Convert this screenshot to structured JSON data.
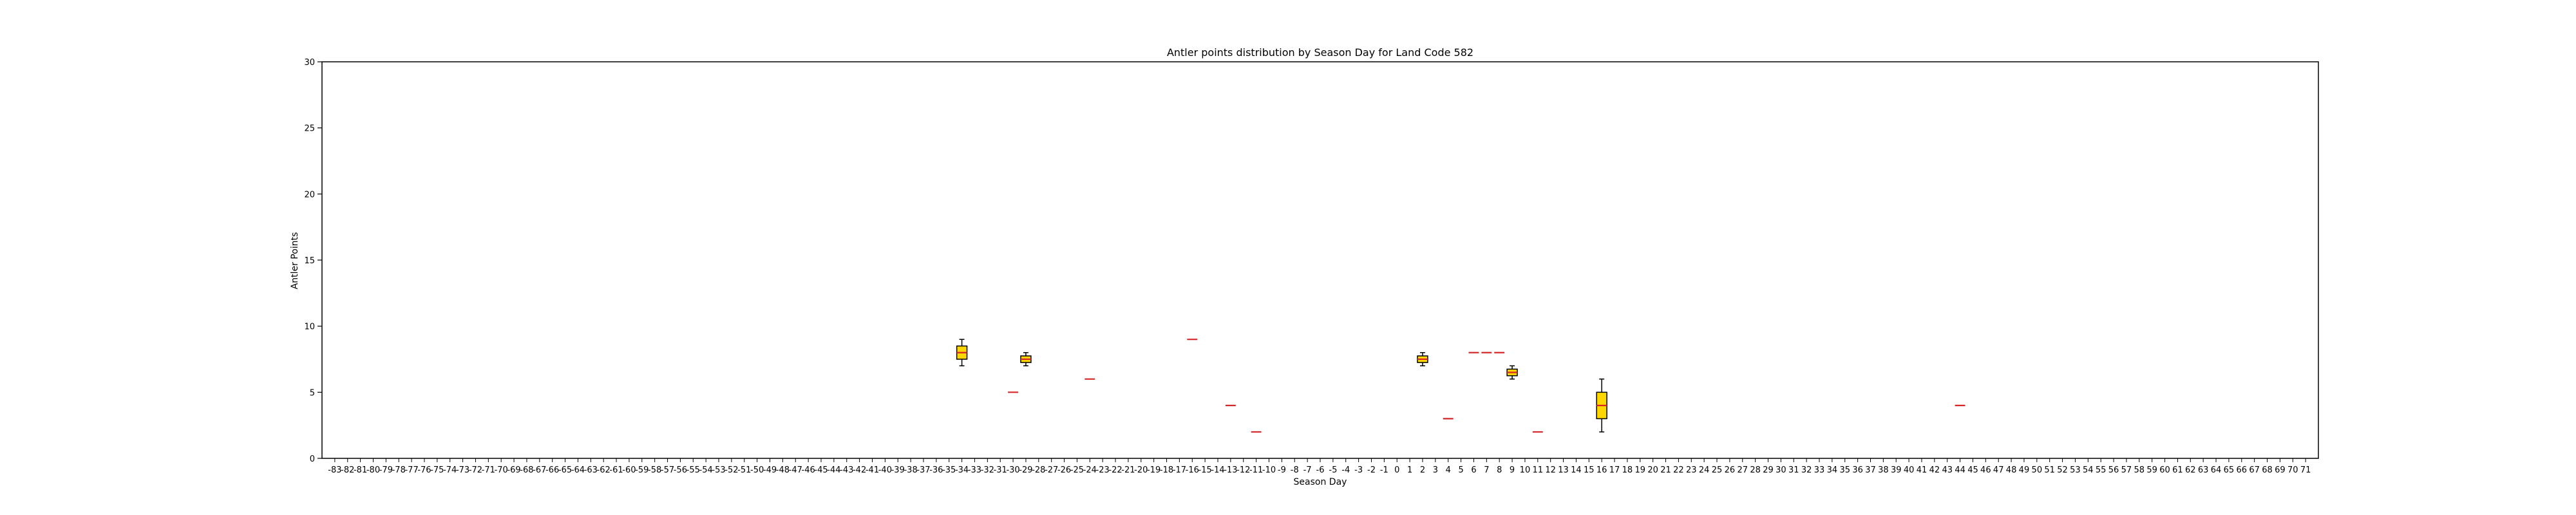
{
  "chart_data": {
    "type": "box",
    "title": "Antler points distribution by Season Day for Land Code 582",
    "xlabel": "Season Day",
    "ylabel": "Antler Points",
    "ylim": [
      0,
      30
    ],
    "yticks": [
      0,
      5,
      10,
      15,
      20,
      25,
      30
    ],
    "x_range": [
      -83,
      71
    ],
    "grid": false,
    "colors": {
      "box_fill": "#ffd700",
      "box_edge": "#000000",
      "median": "#d62728",
      "whisker": "#000000",
      "axis": "#000000"
    },
    "boxes": [
      {
        "day": -34,
        "min": 7,
        "q1": 7.5,
        "median": 8,
        "q3": 8.5,
        "max": 9
      },
      {
        "day": -30,
        "min": 5,
        "q1": 5,
        "median": 5,
        "q3": 5,
        "max": 5
      },
      {
        "day": -29,
        "min": 7,
        "q1": 7.25,
        "median": 7.5,
        "q3": 7.75,
        "max": 8
      },
      {
        "day": -24,
        "min": 6,
        "q1": 6,
        "median": 6,
        "q3": 6,
        "max": 6
      },
      {
        "day": -16,
        "min": 9,
        "q1": 9,
        "median": 9,
        "q3": 9,
        "max": 9
      },
      {
        "day": -13,
        "min": 4,
        "q1": 4,
        "median": 4,
        "q3": 4,
        "max": 4
      },
      {
        "day": -11,
        "min": 2,
        "q1": 2,
        "median": 2,
        "q3": 2,
        "max": 2
      },
      {
        "day": 2,
        "min": 7,
        "q1": 7.25,
        "median": 7.5,
        "q3": 7.75,
        "max": 8
      },
      {
        "day": 4,
        "min": 3,
        "q1": 3,
        "median": 3,
        "q3": 3,
        "max": 3
      },
      {
        "day": 6,
        "min": 8,
        "q1": 8,
        "median": 8,
        "q3": 8,
        "max": 8
      },
      {
        "day": 7,
        "min": 8,
        "q1": 8,
        "median": 8,
        "q3": 8,
        "max": 8
      },
      {
        "day": 8,
        "min": 8,
        "q1": 8,
        "median": 8,
        "q3": 8,
        "max": 8
      },
      {
        "day": 9,
        "min": 6,
        "q1": 6.25,
        "median": 6.5,
        "q3": 6.75,
        "max": 7
      },
      {
        "day": 11,
        "min": 2,
        "q1": 2,
        "median": 2,
        "q3": 2,
        "max": 2
      },
      {
        "day": 16,
        "min": 2,
        "q1": 3,
        "median": 4,
        "q3": 5,
        "max": 6
      },
      {
        "day": 44,
        "min": 4,
        "q1": 4,
        "median": 4,
        "q3": 4,
        "max": 4
      }
    ]
  }
}
